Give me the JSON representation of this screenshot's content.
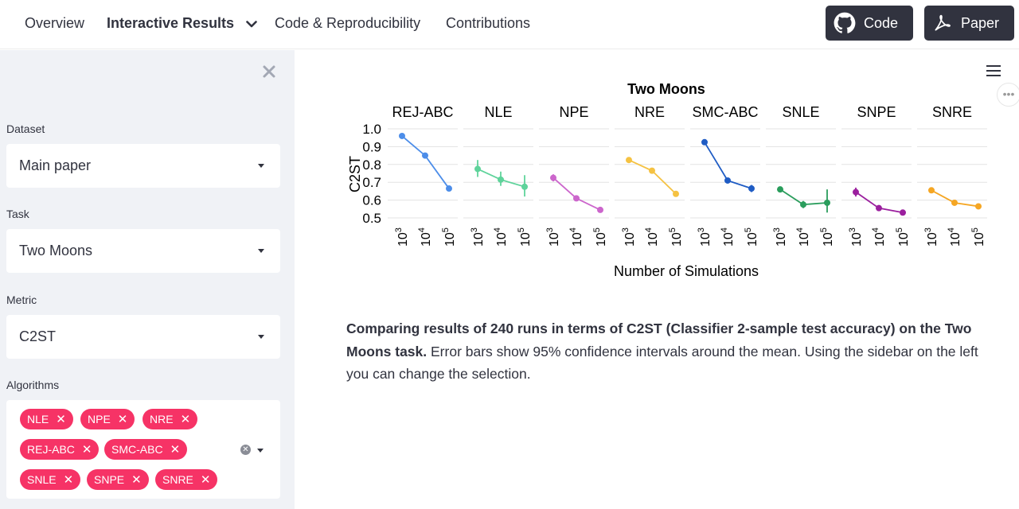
{
  "nav": {
    "overview": "Overview",
    "interactive_results": "Interactive Results",
    "code_repro": "Code & Reproducibility",
    "contributions": "Contributions",
    "code_button": "Code",
    "paper_button": "Paper"
  },
  "sidebar": {
    "dataset_label": "Dataset",
    "dataset_value": "Main paper",
    "task_label": "Task",
    "task_value": "Two Moons",
    "metric_label": "Metric",
    "metric_value": "C2ST",
    "algorithms_label": "Algorithms",
    "algorithms": [
      "NLE",
      "NPE",
      "NRE",
      "REJ-ABC",
      "SMC-ABC",
      "SNLE",
      "SNPE",
      "SNRE"
    ]
  },
  "caption": {
    "bold": "Comparing results of 240 runs in terms of C2ST (Classifier 2-sample test accuracy) on the Two Moons task.",
    "rest": " Error bars show 95% confidence intervals around the mean. Using the sidebar on the left you can change the selection."
  },
  "chart_data": {
    "type": "line",
    "title": "Two Moons",
    "xlabel": "Number of Simulations",
    "ylabel": "C2ST",
    "ylim": [
      0.5,
      1.0
    ],
    "yticks": [
      "1.0",
      "0.9",
      "0.8",
      "0.7",
      "0.6",
      "0.5"
    ],
    "x_base": "10",
    "x_exponents": [
      "3",
      "4",
      "5"
    ],
    "grid": true,
    "panels": [
      {
        "name": "REJ-ABC",
        "color": "#4c8de9",
        "values": [
          0.96,
          0.85,
          0.665
        ],
        "err": [
          [
            0.955,
            0.965
          ],
          [
            0.845,
            0.855
          ],
          [
            0.655,
            0.675
          ]
        ]
      },
      {
        "name": "NLE",
        "color": "#5fd39b",
        "values": [
          0.775,
          0.715,
          0.675
        ],
        "err": [
          [
            0.73,
            0.825
          ],
          [
            0.68,
            0.76
          ],
          [
            0.62,
            0.74
          ]
        ]
      },
      {
        "name": "NPE",
        "color": "#cc66cc",
        "values": [
          0.725,
          0.61,
          0.545
        ],
        "err": [
          [
            0.705,
            0.745
          ],
          [
            0.6,
            0.625
          ],
          [
            0.54,
            0.55
          ]
        ]
      },
      {
        "name": "NRE",
        "color": "#f5c242",
        "values": [
          0.825,
          0.765,
          0.635
        ],
        "err": [
          [
            0.815,
            0.835
          ],
          [
            0.755,
            0.775
          ],
          [
            0.62,
            0.65
          ]
        ]
      },
      {
        "name": "SMC-ABC",
        "color": "#1f5cc4",
        "values": [
          0.925,
          0.71,
          0.665
        ],
        "err": [
          [
            0.92,
            0.93
          ],
          [
            0.7,
            0.72
          ],
          [
            0.645,
            0.685
          ]
        ]
      },
      {
        "name": "SNLE",
        "color": "#2a9d5c",
        "values": [
          0.66,
          0.575,
          0.585
        ],
        "err": [
          [
            0.645,
            0.675
          ],
          [
            0.555,
            0.595
          ],
          [
            0.53,
            0.66
          ]
        ]
      },
      {
        "name": "SNPE",
        "color": "#9b1f9e",
        "values": [
          0.645,
          0.555,
          0.53
        ],
        "err": [
          [
            0.62,
            0.67
          ],
          [
            0.55,
            0.565
          ],
          [
            0.525,
            0.535
          ]
        ]
      },
      {
        "name": "SNRE",
        "color": "#f5a623",
        "values": [
          0.655,
          0.585,
          0.565
        ],
        "err": [
          [
            0.645,
            0.665
          ],
          [
            0.58,
            0.59
          ],
          [
            0.56,
            0.57
          ]
        ]
      }
    ]
  }
}
